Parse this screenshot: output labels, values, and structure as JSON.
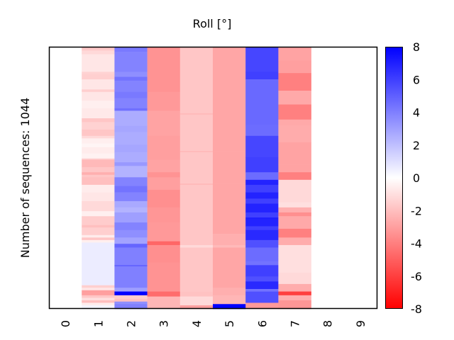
{
  "chart_data": {
    "type": "heatmap",
    "title": "Roll [°]",
    "ylabel": "Number of sequences: 1044",
    "xlabel": "",
    "x_ticks": [
      "0",
      "1",
      "2",
      "3",
      "4",
      "5",
      "6",
      "7",
      "8",
      "9"
    ],
    "n_sequences": 1044,
    "colorbar": {
      "min": -8,
      "max": 8,
      "ticks": [
        "8",
        "6",
        "4",
        "2",
        "0",
        "-2",
        "-4",
        "-6",
        "-8"
      ],
      "low_color": "#ff0000",
      "mid_color": "#ffffff",
      "high_color": "#0000ff"
    },
    "columns": [
      {
        "x": 1,
        "segments": [
          [
            0,
            15,
            -1.7
          ],
          [
            15,
            30,
            -1.2
          ],
          [
            30,
            100,
            -0.8
          ],
          [
            100,
            110,
            -1.4
          ],
          [
            110,
            130,
            -1.5
          ],
          [
            130,
            170,
            -0.8
          ],
          [
            170,
            180,
            -1.5
          ],
          [
            180,
            215,
            -0.8
          ],
          [
            215,
            245,
            -0.5
          ],
          [
            245,
            285,
            -0.7
          ],
          [
            285,
            300,
            -1.8
          ],
          [
            300,
            330,
            -1.4
          ],
          [
            330,
            355,
            -1.8
          ],
          [
            355,
            365,
            -1.2
          ],
          [
            365,
            385,
            -0.5
          ],
          [
            385,
            400,
            -0.3
          ],
          [
            400,
            425,
            -0.6
          ],
          [
            425,
            445,
            -0.4
          ],
          [
            445,
            450,
            -1.5
          ],
          [
            450,
            480,
            -2.2
          ],
          [
            480,
            500,
            -1.8
          ],
          [
            500,
            510,
            -2.5
          ],
          [
            510,
            520,
            -1.8
          ],
          [
            520,
            550,
            -2.0
          ],
          [
            550,
            580,
            -0.6
          ],
          [
            580,
            615,
            -0.8
          ],
          [
            615,
            655,
            -1.2
          ],
          [
            655,
            675,
            -0.5
          ],
          [
            675,
            710,
            -1.6
          ],
          [
            710,
            720,
            -2.0
          ],
          [
            720,
            750,
            -1.5
          ],
          [
            750,
            760,
            -0.6
          ],
          [
            760,
            770,
            -1.8
          ],
          [
            770,
            780,
            -0.5
          ],
          [
            780,
            950,
            0.6
          ],
          [
            950,
            960,
            -1.5
          ],
          [
            960,
            970,
            -0.8
          ],
          [
            970,
            990,
            -3.0
          ],
          [
            990,
            1000,
            -1.8
          ],
          [
            1000,
            1010,
            -1.0
          ],
          [
            1010,
            1020,
            -2.0
          ],
          [
            1020,
            1030,
            -0.6
          ],
          [
            1030,
            1044,
            0.3
          ]
        ]
      },
      {
        "x": 2,
        "segments": [
          [
            0,
            20,
            4.2
          ],
          [
            20,
            100,
            3.9
          ],
          [
            100,
            120,
            3.5
          ],
          [
            120,
            135,
            4.4
          ],
          [
            135,
            180,
            3.9
          ],
          [
            180,
            205,
            4.2
          ],
          [
            205,
            245,
            3.9
          ],
          [
            245,
            255,
            4.5
          ],
          [
            255,
            315,
            2.6
          ],
          [
            315,
            340,
            2.8
          ],
          [
            340,
            390,
            2.6
          ],
          [
            390,
            420,
            2.8
          ],
          [
            420,
            460,
            2.6
          ],
          [
            460,
            475,
            3.2
          ],
          [
            475,
            520,
            2.4
          ],
          [
            520,
            555,
            3.9
          ],
          [
            555,
            580,
            4.4
          ],
          [
            580,
            615,
            3.9
          ],
          [
            615,
            640,
            2.7
          ],
          [
            640,
            660,
            2.4
          ],
          [
            660,
            700,
            3.0
          ],
          [
            700,
            730,
            3.9
          ],
          [
            730,
            760,
            3.5
          ],
          [
            760,
            785,
            2.9
          ],
          [
            785,
            800,
            4.8
          ],
          [
            800,
            870,
            4.0
          ],
          [
            870,
            875,
            5.0
          ],
          [
            875,
            960,
            4.0
          ],
          [
            960,
            975,
            3.0
          ],
          [
            975,
            990,
            8.0
          ],
          [
            990,
            1005,
            -1.6
          ],
          [
            1005,
            1015,
            -2.0
          ],
          [
            1015,
            1025,
            3.5
          ],
          [
            1025,
            1044,
            4.0
          ]
        ]
      },
      {
        "x": 3,
        "segments": [
          [
            0,
            180,
            -3.4
          ],
          [
            180,
            255,
            -3.2
          ],
          [
            255,
            355,
            -2.9
          ],
          [
            355,
            450,
            -3.0
          ],
          [
            450,
            500,
            -2.9
          ],
          [
            500,
            520,
            -3.4
          ],
          [
            520,
            570,
            -3.0
          ],
          [
            570,
            640,
            -3.5
          ],
          [
            640,
            700,
            -3.3
          ],
          [
            700,
            775,
            -3.2
          ],
          [
            775,
            790,
            -4.8
          ],
          [
            790,
            860,
            -3.5
          ],
          [
            860,
            975,
            -3.4
          ],
          [
            975,
            995,
            -4.6
          ],
          [
            995,
            1044,
            -2.3
          ]
        ]
      },
      {
        "x": 4,
        "segments": [
          [
            0,
            265,
            -1.8
          ],
          [
            265,
            270,
            -2.2
          ],
          [
            270,
            415,
            -1.8
          ],
          [
            415,
            420,
            -2.2
          ],
          [
            420,
            545,
            -1.8
          ],
          [
            545,
            550,
            -2.2
          ],
          [
            550,
            790,
            -1.8
          ],
          [
            790,
            800,
            -1.2
          ],
          [
            800,
            975,
            -1.8
          ],
          [
            975,
            995,
            -1.9
          ],
          [
            995,
            1030,
            -1.2
          ],
          [
            1030,
            1044,
            -3.0
          ]
        ]
      },
      {
        "x": 5,
        "segments": [
          [
            0,
            135,
            -2.8
          ],
          [
            135,
            265,
            -2.8
          ],
          [
            265,
            415,
            -2.8
          ],
          [
            415,
            545,
            -2.8
          ],
          [
            545,
            745,
            -2.8
          ],
          [
            745,
            790,
            -2.5
          ],
          [
            790,
            800,
            -2.2
          ],
          [
            800,
            960,
            -2.8
          ],
          [
            960,
            990,
            -2.5
          ],
          [
            990,
            1025,
            -2.3
          ],
          [
            1025,
            1044,
            8.0
          ]
        ]
      },
      {
        "x": 6,
        "segments": [
          [
            0,
            100,
            5.8
          ],
          [
            100,
            130,
            6.0
          ],
          [
            130,
            310,
            4.7
          ],
          [
            310,
            355,
            4.6
          ],
          [
            355,
            440,
            5.8
          ],
          [
            440,
            500,
            6.0
          ],
          [
            500,
            530,
            4.6
          ],
          [
            530,
            550,
            6.9
          ],
          [
            550,
            580,
            6.0
          ],
          [
            580,
            605,
            6.9
          ],
          [
            605,
            625,
            6.0
          ],
          [
            625,
            660,
            6.9
          ],
          [
            660,
            680,
            6.0
          ],
          [
            680,
            690,
            7.0
          ],
          [
            690,
            715,
            6.9
          ],
          [
            715,
            730,
            6.0
          ],
          [
            730,
            770,
            6.7
          ],
          [
            770,
            800,
            5.5
          ],
          [
            800,
            855,
            4.6
          ],
          [
            855,
            870,
            4.4
          ],
          [
            870,
            915,
            6.0
          ],
          [
            915,
            935,
            5.5
          ],
          [
            935,
            965,
            6.7
          ],
          [
            965,
            975,
            4.4
          ],
          [
            975,
            1020,
            5.5
          ],
          [
            1020,
            1044,
            -3.2
          ]
        ]
      },
      {
        "x": 7,
        "segments": [
          [
            0,
            55,
            -2.9
          ],
          [
            55,
            105,
            -3.0
          ],
          [
            105,
            175,
            -4.0
          ],
          [
            175,
            230,
            -2.7
          ],
          [
            230,
            290,
            -4.0
          ],
          [
            290,
            315,
            -2.7
          ],
          [
            315,
            380,
            -2.6
          ],
          [
            380,
            470,
            -2.9
          ],
          [
            470,
            500,
            -2.9
          ],
          [
            500,
            530,
            -4.0
          ],
          [
            530,
            620,
            -1.2
          ],
          [
            620,
            640,
            -1.0
          ],
          [
            640,
            660,
            -2.5
          ],
          [
            660,
            675,
            -3.5
          ],
          [
            675,
            725,
            -2.7
          ],
          [
            725,
            760,
            -4.0
          ],
          [
            760,
            790,
            -2.6
          ],
          [
            790,
            840,
            -1.0
          ],
          [
            840,
            900,
            -1.0
          ],
          [
            900,
            945,
            -1.2
          ],
          [
            945,
            975,
            -2.6
          ],
          [
            975,
            990,
            -6.0
          ],
          [
            990,
            1010,
            -2.5
          ],
          [
            1010,
            1044,
            -3.3
          ]
        ]
      }
    ]
  }
}
